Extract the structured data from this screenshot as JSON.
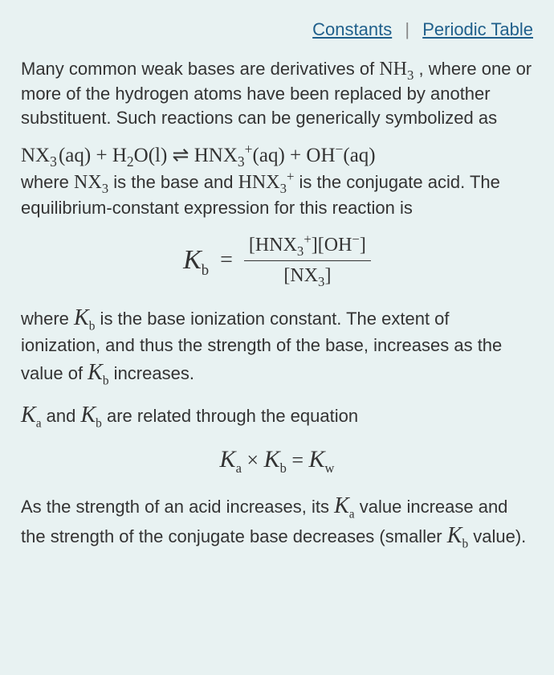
{
  "links": {
    "constants": "Constants",
    "periodic": "Periodic Table"
  },
  "para1_a": "Many common weak bases are derivatives of ",
  "para1_nh3": "NH",
  "para1_nh3_sub": "3",
  "para1_b": " , where one or more of the hydrogen atoms have been replaced by another substituent. Such reactions can be generically symbolized as",
  "reaction": {
    "nx3": "NX",
    "sub3": "3",
    "aq": "(aq)",
    "plus": " + ",
    "h2o": "H",
    "sub2": "2",
    "o": "O",
    "l": "(l)",
    "eq": " ⇌ ",
    "hnx3": "HNX",
    "supplus": "+",
    "oh": "OH",
    "supminus": "−"
  },
  "para2_a": "where ",
  "para2_nx3": "NX",
  "para2_b": " is the base and ",
  "para2_hnx3": "HNX",
  "para2_c": " is the conjugate acid. The equilibrium-constant expression for this reaction is",
  "kb_eq": {
    "K": "K",
    "b": "b",
    "equals": "=",
    "num_a": "[HNX",
    "num_b": "][OH",
    "num_c": "]",
    "den_a": "[NX",
    "den_b": "]"
  },
  "para3_a": "where ",
  "para3_b": " is the base ionization constant. The extent of ionization, and thus the strength of the base, increases as the value of ",
  "para3_c": " increases.",
  "para4_a": " and ",
  "para4_b": " are related through the equation",
  "kakb_eq": {
    "Ka": "K",
    "a": "a",
    "times": " × ",
    "Kb": "K",
    "b": "b",
    "eq": " = ",
    "Kw": "K",
    "w": "w"
  },
  "para5_a": "As the strength of an acid increases, its ",
  "para5_b": " value increase and the strength of the conjugate base decreases (smaller ",
  "para5_c": " value).",
  "colors": {
    "background": "#e8f2f2",
    "text": "#333333",
    "link": "#1f5f8b"
  }
}
